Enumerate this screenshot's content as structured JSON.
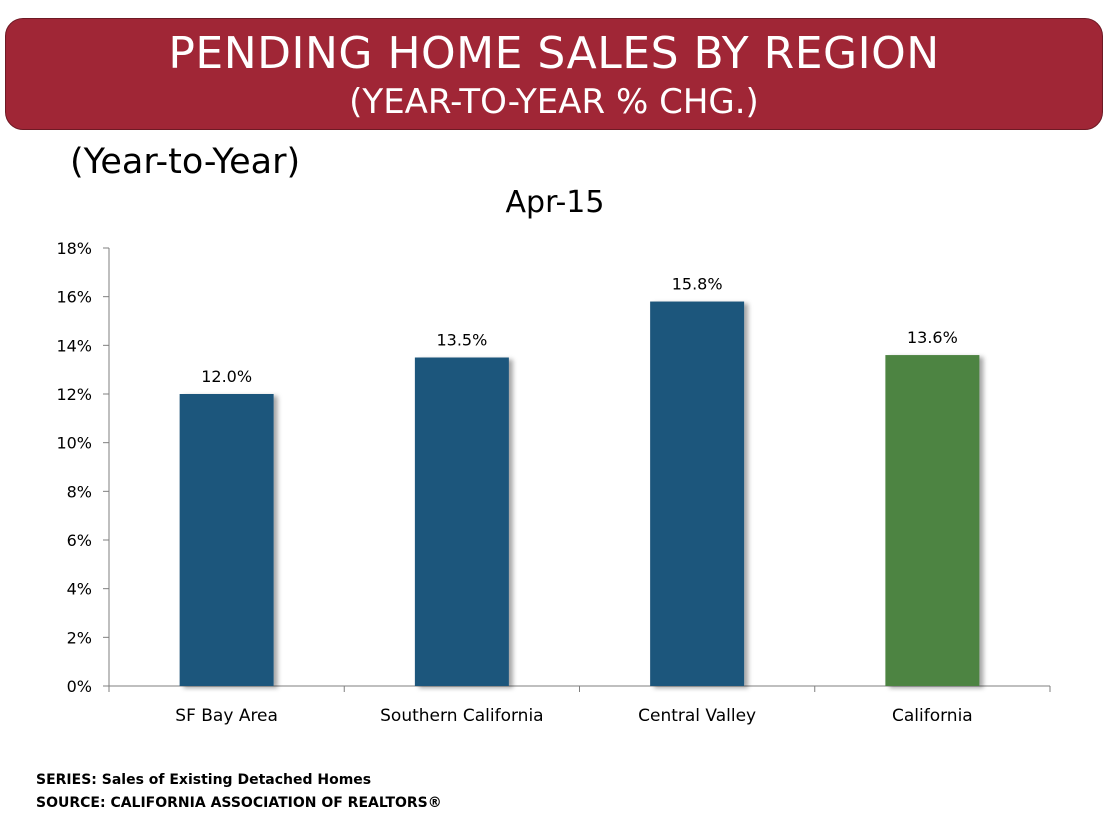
{
  "header": {
    "title": "PENDING HOME SALES BY REGION",
    "subtitle": "(YEAR-TO-YEAR % CHG.)"
  },
  "subheading": "(Year-to-Year)",
  "colors": {
    "banner": "#a02636",
    "bar_regions": "#1f577b",
    "bar_california": "#4e8443",
    "axis": "#7f7f7f"
  },
  "chart_data": {
    "type": "bar",
    "title": "Apr-15",
    "categories": [
      "SF Bay Area",
      "Southern California",
      "Central Valley",
      "California"
    ],
    "values": [
      12.0,
      13.5,
      15.8,
      13.6
    ],
    "value_labels": [
      "12.0%",
      "13.5%",
      "15.8%",
      "13.6%"
    ],
    "bar_colors": [
      "#1f577b",
      "#1f577b",
      "#1f577b",
      "#4e8443"
    ],
    "yticks": [
      "0%",
      "2%",
      "4%",
      "6%",
      "8%",
      "10%",
      "12%",
      "14%",
      "16%",
      "18%"
    ],
    "ylim": [
      0,
      18
    ],
    "xlabel": "",
    "ylabel": "",
    "grid": false,
    "legend": false
  },
  "footer": {
    "series": "SERIES: Sales of Existing Detached Homes",
    "source": "SOURCE:  CALIFORNIA ASSOCIATION OF REALTORS®"
  }
}
